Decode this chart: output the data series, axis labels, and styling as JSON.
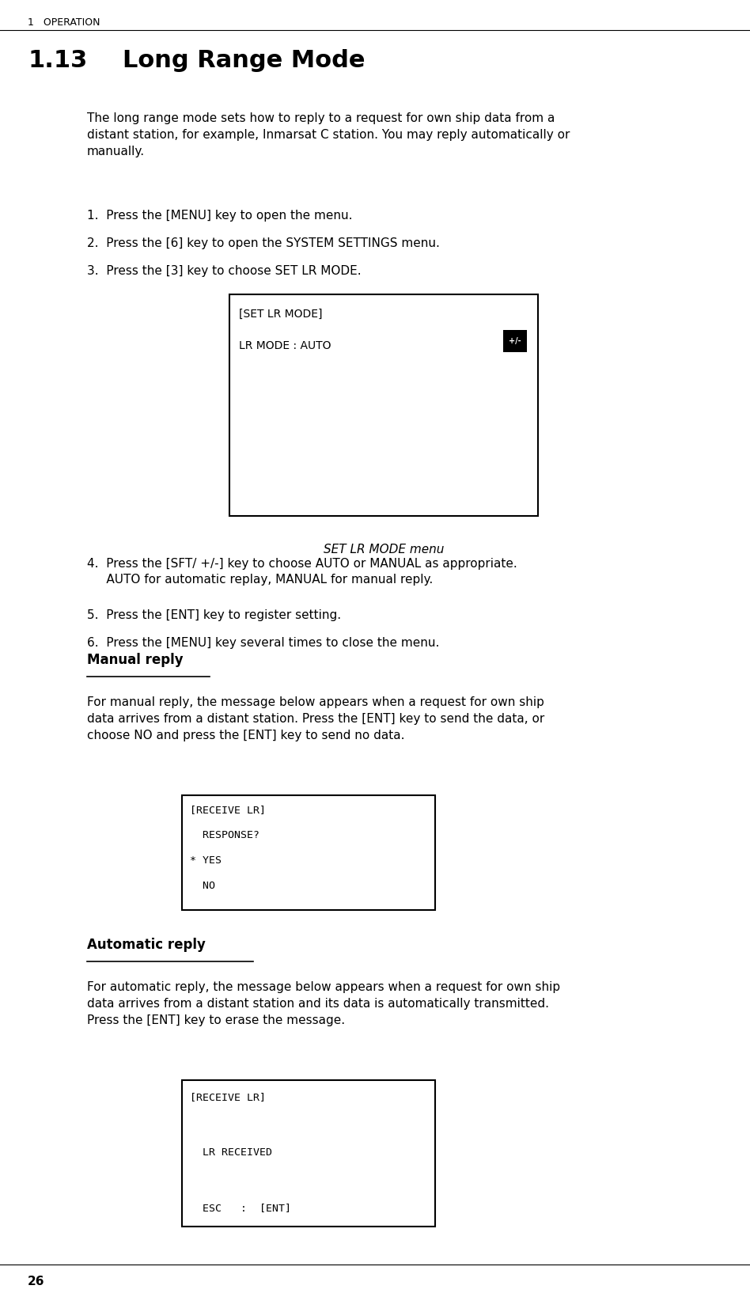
{
  "bg_color": "#ffffff",
  "text_color": "#000000",
  "header_text": "1   OPERATION",
  "section_num": "1.13",
  "section_title": "Long Range Mode",
  "intro_text": "The long range mode sets how to reply to a request for own ship data from a\ndistant station, for example, Inmarsat C station. You may reply automatically or\nmanually.",
  "steps": [
    "1.  Press the [MENU] key to open the menu.",
    "2.  Press the [6] key to open the SYSTEM SETTINGS menu.",
    "3.  Press the [3] key to choose SET LR MODE."
  ],
  "box1_title": "[SET LR MODE]",
  "box1_line1": "LR MODE : AUTO",
  "box1_caption": "SET LR MODE menu",
  "steps2": [
    "4.  Press the [SFT/ +/-] key to choose AUTO or MANUAL as appropriate.\n     AUTO for automatic replay, MANUAL for manual reply.",
    "5.  Press the [ENT] key to register setting.",
    "6.  Press the [MENU] key several times to close the menu."
  ],
  "manual_title": "Manual reply",
  "manual_text": "For manual reply, the message below appears when a request for own ship\ndata arrives from a distant station. Press the [ENT] key to send the data, or\nchoose NO and press the [ENT] key to send no data.",
  "box2_lines": [
    "[RECEIVE LR]",
    "  RESPONSE?",
    "* YES",
    "  NO"
  ],
  "auto_title": "Automatic reply",
  "auto_text": "For automatic reply, the message below appears when a request for own ship\ndata arrives from a distant station and its data is automatically transmitted.\nPress the [ENT] key to erase the message.",
  "box3_lines": [
    "[RECEIVE LR]",
    "",
    "  LR RECEIVED",
    "",
    "  ESC   :  [ENT]"
  ],
  "footer_text": "26"
}
